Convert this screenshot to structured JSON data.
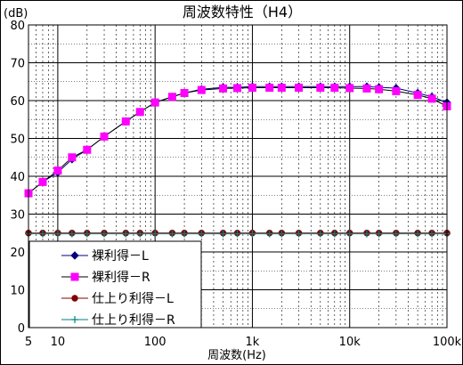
{
  "chart_data": {
    "type": "line",
    "title": "周波数特性（H4）",
    "ylabel": "(dB)",
    "xlabel": "周波数(Hz)",
    "xscale": "log",
    "xlim": [
      5,
      100000
    ],
    "ylim": [
      0,
      80
    ],
    "yticks": [
      "0",
      "10",
      "20",
      "30",
      "40",
      "50",
      "60",
      "70",
      "80"
    ],
    "xticks": [
      {
        "v": 5,
        "label": "5"
      },
      {
        "v": 10,
        "label": "10"
      },
      {
        "v": 100,
        "label": "100"
      },
      {
        "v": 1000,
        "label": "1k"
      },
      {
        "v": 10000,
        "label": "10k"
      },
      {
        "v": 100000,
        "label": "100k"
      }
    ],
    "grid": true,
    "legend_position": "bottom-left",
    "x": [
      5,
      7,
      10,
      14,
      20,
      30,
      50,
      70,
      100,
      150,
      200,
      300,
      500,
      700,
      1000,
      1500,
      2000,
      3000,
      5000,
      7000,
      10000,
      15000,
      20000,
      30000,
      50000,
      70000,
      100000
    ],
    "series": [
      {
        "name": "裸利得－L",
        "color": "#000080",
        "marker": "diamond",
        "values": [
          35.5,
          38.5,
          41.0,
          44.5,
          47.0,
          50.5,
          54.5,
          57.0,
          59.5,
          61.0,
          62.0,
          63.0,
          63.5,
          63.5,
          63.7,
          63.7,
          63.7,
          63.7,
          63.7,
          63.7,
          63.7,
          63.7,
          63.5,
          63.3,
          62.0,
          61.0,
          59.5
        ]
      },
      {
        "name": "裸利得－R",
        "color": "#ff00ff",
        "marker": "square",
        "values": [
          35.5,
          38.5,
          41.5,
          45.0,
          47.0,
          50.5,
          54.5,
          57.0,
          59.5,
          61.0,
          62.0,
          62.8,
          63.2,
          63.3,
          63.4,
          63.4,
          63.4,
          63.4,
          63.4,
          63.4,
          63.3,
          63.2,
          63.0,
          62.5,
          61.5,
          60.5,
          58.5
        ]
      },
      {
        "name": "仕上り利得－L",
        "color": "#800000",
        "marker": "circle",
        "values": [
          25,
          25,
          25,
          25,
          25,
          25,
          25,
          25,
          25,
          25,
          25,
          25,
          25,
          25,
          25,
          25,
          25,
          25,
          25,
          25,
          25,
          25,
          25,
          25,
          25,
          25,
          25
        ]
      },
      {
        "name": "仕上り利得－R",
        "color": "#008080",
        "marker": "plus",
        "values": [
          24.8,
          24.8,
          24.8,
          24.8,
          24.8,
          24.8,
          24.8,
          24.8,
          24.8,
          24.8,
          24.8,
          24.8,
          24.8,
          24.8,
          24.8,
          24.8,
          24.8,
          24.8,
          24.8,
          24.8,
          24.8,
          24.8,
          24.8,
          24.8,
          24.8,
          24.8,
          24.8
        ]
      }
    ]
  }
}
